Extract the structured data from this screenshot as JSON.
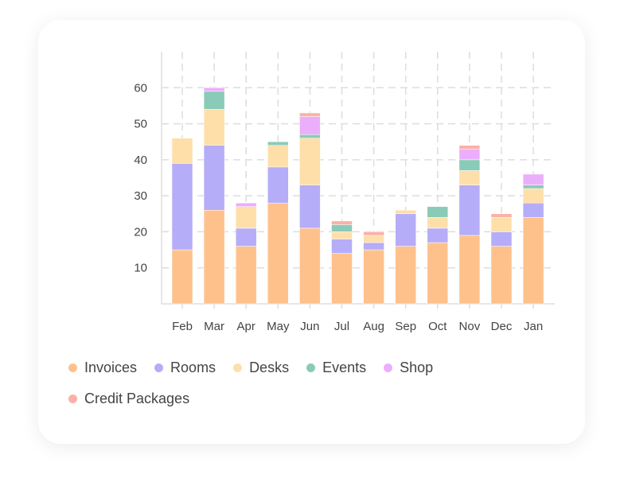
{
  "chart_data": {
    "type": "bar",
    "stacked": true,
    "categories": [
      "Feb",
      "Mar",
      "Apr",
      "May",
      "Jun",
      "Jul",
      "Aug",
      "Sep",
      "Oct",
      "Nov",
      "Dec",
      "Jan"
    ],
    "series": [
      {
        "name": "Invoices",
        "color": "#FFC18C",
        "values": [
          15,
          26,
          16,
          28,
          21,
          14,
          15,
          16,
          17,
          19,
          16,
          24
        ]
      },
      {
        "name": "Rooms",
        "color": "#B5ADF8",
        "values": [
          24,
          18,
          5,
          10,
          12,
          4,
          2,
          9,
          4,
          14,
          4,
          4
        ]
      },
      {
        "name": "Desks",
        "color": "#FEDFAA",
        "values": [
          7,
          10,
          6,
          6,
          13,
          2,
          2,
          1,
          3,
          4,
          4,
          4
        ]
      },
      {
        "name": "Events",
        "color": "#8ACBB8",
        "values": [
          0,
          5,
          0,
          1,
          1,
          2,
          0,
          0,
          3,
          3,
          0,
          1
        ]
      },
      {
        "name": "Shop",
        "color": "#EBAEFB",
        "values": [
          0,
          1,
          1,
          0,
          5,
          0,
          0,
          0,
          0,
          3,
          0,
          3
        ]
      },
      {
        "name": "Credit Packages",
        "color": "#FBB1A6",
        "values": [
          0,
          0,
          0,
          0,
          1,
          1,
          1,
          0,
          0,
          1,
          1,
          0
        ]
      }
    ],
    "yticks": [
      10,
      20,
      30,
      40,
      50,
      60
    ],
    "ylim": [
      0,
      70
    ],
    "title": "",
    "xlabel": "",
    "ylabel": "",
    "grid": true,
    "legend_placement": "bottom-left"
  }
}
